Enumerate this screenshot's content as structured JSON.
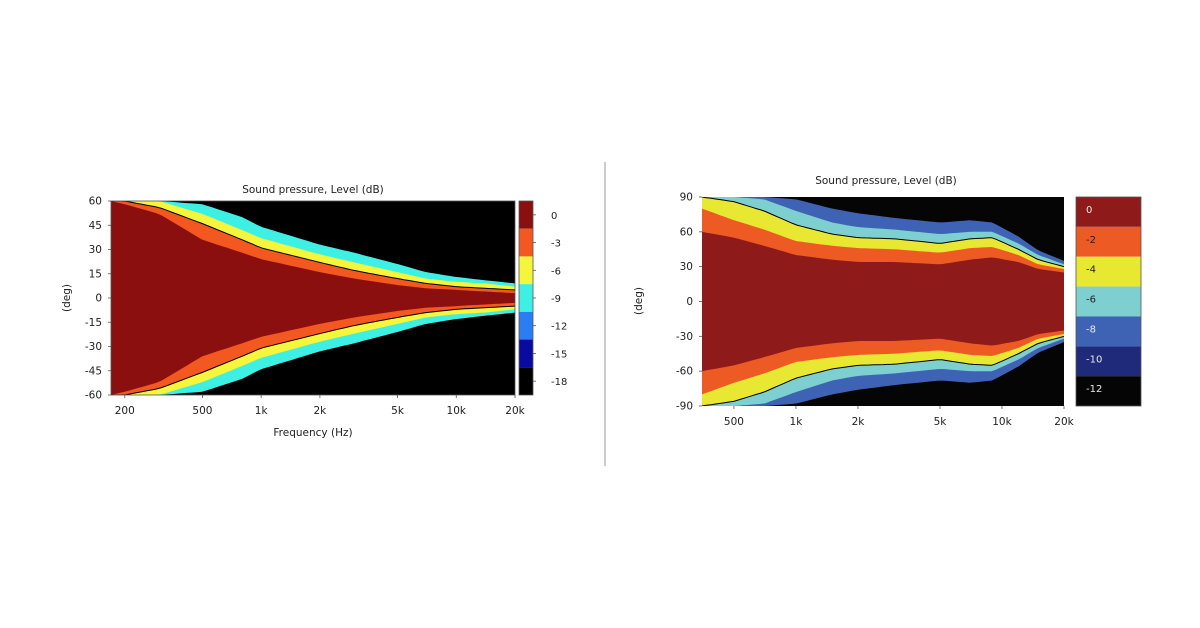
{
  "divider_color": "#9a9a9a",
  "chart_data": [
    {
      "type": "heatmap",
      "title": "Sound pressure, Level  (dB)",
      "xlabel": "Frequency  (Hz)",
      "ylabel": "(deg)",
      "x_scale": "log",
      "xlim": [
        170,
        20000
      ],
      "ylim": [
        -60,
        60
      ],
      "x_ticks": [
        {
          "value": 200,
          "label": "200"
        },
        {
          "value": 500,
          "label": "500"
        },
        {
          "value": 1000,
          "label": "1k"
        },
        {
          "value": 2000,
          "label": "2k"
        },
        {
          "value": 5000,
          "label": "5k"
        },
        {
          "value": 10000,
          "label": "10k"
        },
        {
          "value": 20000,
          "label": "20k"
        }
      ],
      "y_ticks": [
        {
          "value": 60,
          "label": "60"
        },
        {
          "value": 45,
          "label": "45"
        },
        {
          "value": 30,
          "label": "30"
        },
        {
          "value": 15,
          "label": "15"
        },
        {
          "value": 0,
          "label": "0"
        },
        {
          "value": -15,
          "label": "-15"
        },
        {
          "value": -30,
          "label": "-30"
        },
        {
          "value": -45,
          "label": "-45"
        },
        {
          "value": -60,
          "label": "-60"
        }
      ],
      "colorbar": {
        "placement": "right",
        "levels": [
          {
            "label": "0",
            "color": "#8b0f0f"
          },
          {
            "label": "-3",
            "color": "#f2581f"
          },
          {
            "label": "-6",
            "color": "#f5f53c"
          },
          {
            "label": "-9",
            "color": "#3ef0e4"
          },
          {
            "label": "-12",
            "color": "#2a7df2"
          },
          {
            "label": "-15",
            "color": "#0a0aa0"
          },
          {
            "label": "-18",
            "color": "#000000"
          }
        ]
      },
      "band_half_widths_deg": {
        "freq": [
          170,
          200,
          300,
          500,
          800,
          1000,
          2000,
          3000,
          5000,
          7000,
          10000,
          14000,
          20000
        ],
        "to_-3dB": [
          60,
          58,
          52,
          36,
          28,
          24,
          16,
          12,
          8,
          6,
          5,
          4,
          3
        ],
        "to_-6dB": [
          60,
          60,
          56,
          46,
          36,
          31,
          22,
          17,
          12,
          9,
          7,
          6,
          5
        ],
        "to_-9dB": [
          60,
          60,
          60,
          52,
          42,
          37,
          27,
          22,
          16,
          12,
          10,
          9,
          7
        ],
        "to_-12dB": [
          60,
          60,
          60,
          58,
          50,
          44,
          33,
          28,
          21,
          16,
          13,
          11,
          9
        ]
      }
    },
    {
      "type": "heatmap",
      "title": "Sound pressure, Level  (dB)",
      "xlabel": "",
      "ylabel": "(deg)",
      "x_scale": "log",
      "xlim": [
        350,
        20000
      ],
      "ylim": [
        -90,
        90
      ],
      "x_ticks": [
        {
          "value": 500,
          "label": "500"
        },
        {
          "value": 1000,
          "label": "1k"
        },
        {
          "value": 2000,
          "label": "2k"
        },
        {
          "value": 5000,
          "label": "5k"
        },
        {
          "value": 10000,
          "label": "10k"
        },
        {
          "value": 20000,
          "label": "20k"
        }
      ],
      "y_ticks": [
        {
          "value": 90,
          "label": "90"
        },
        {
          "value": 60,
          "label": "60"
        },
        {
          "value": 30,
          "label": "30"
        },
        {
          "value": 0,
          "label": "0"
        },
        {
          "value": -30,
          "label": "-30"
        },
        {
          "value": -60,
          "label": "-60"
        },
        {
          "value": -90,
          "label": "-90"
        }
      ],
      "colorbar": {
        "placement": "right",
        "levels": [
          {
            "label": "0",
            "color": "#8e1a1a"
          },
          {
            "label": "-2",
            "color": "#ee5a24"
          },
          {
            "label": "-4",
            "color": "#e8e832"
          },
          {
            "label": "-6",
            "color": "#7ecfcf"
          },
          {
            "label": "-8",
            "color": "#3f63b4"
          },
          {
            "label": "-10",
            "color": "#1f2a7a"
          },
          {
            "label": "-12",
            "color": "#050505"
          }
        ]
      },
      "band_half_widths_deg": {
        "freq": [
          350,
          500,
          700,
          1000,
          1500,
          2000,
          3000,
          5000,
          7000,
          9000,
          12000,
          15000,
          20000
        ],
        "to_-2dB": [
          60,
          55,
          48,
          40,
          36,
          34,
          34,
          32,
          36,
          38,
          34,
          28,
          25
        ],
        "to_-4dB": [
          80,
          70,
          62,
          52,
          48,
          46,
          45,
          42,
          46,
          47,
          40,
          32,
          28
        ],
        "to_-6dB": [
          90,
          86,
          78,
          66,
          58,
          55,
          54,
          50,
          54,
          55,
          45,
          36,
          30
        ],
        "to_-8dB": [
          90,
          90,
          88,
          78,
          68,
          64,
          62,
          58,
          60,
          60,
          50,
          40,
          32
        ],
        "to_-10dB": [
          90,
          90,
          90,
          88,
          80,
          76,
          72,
          68,
          70,
          68,
          56,
          44,
          35
        ]
      }
    }
  ]
}
